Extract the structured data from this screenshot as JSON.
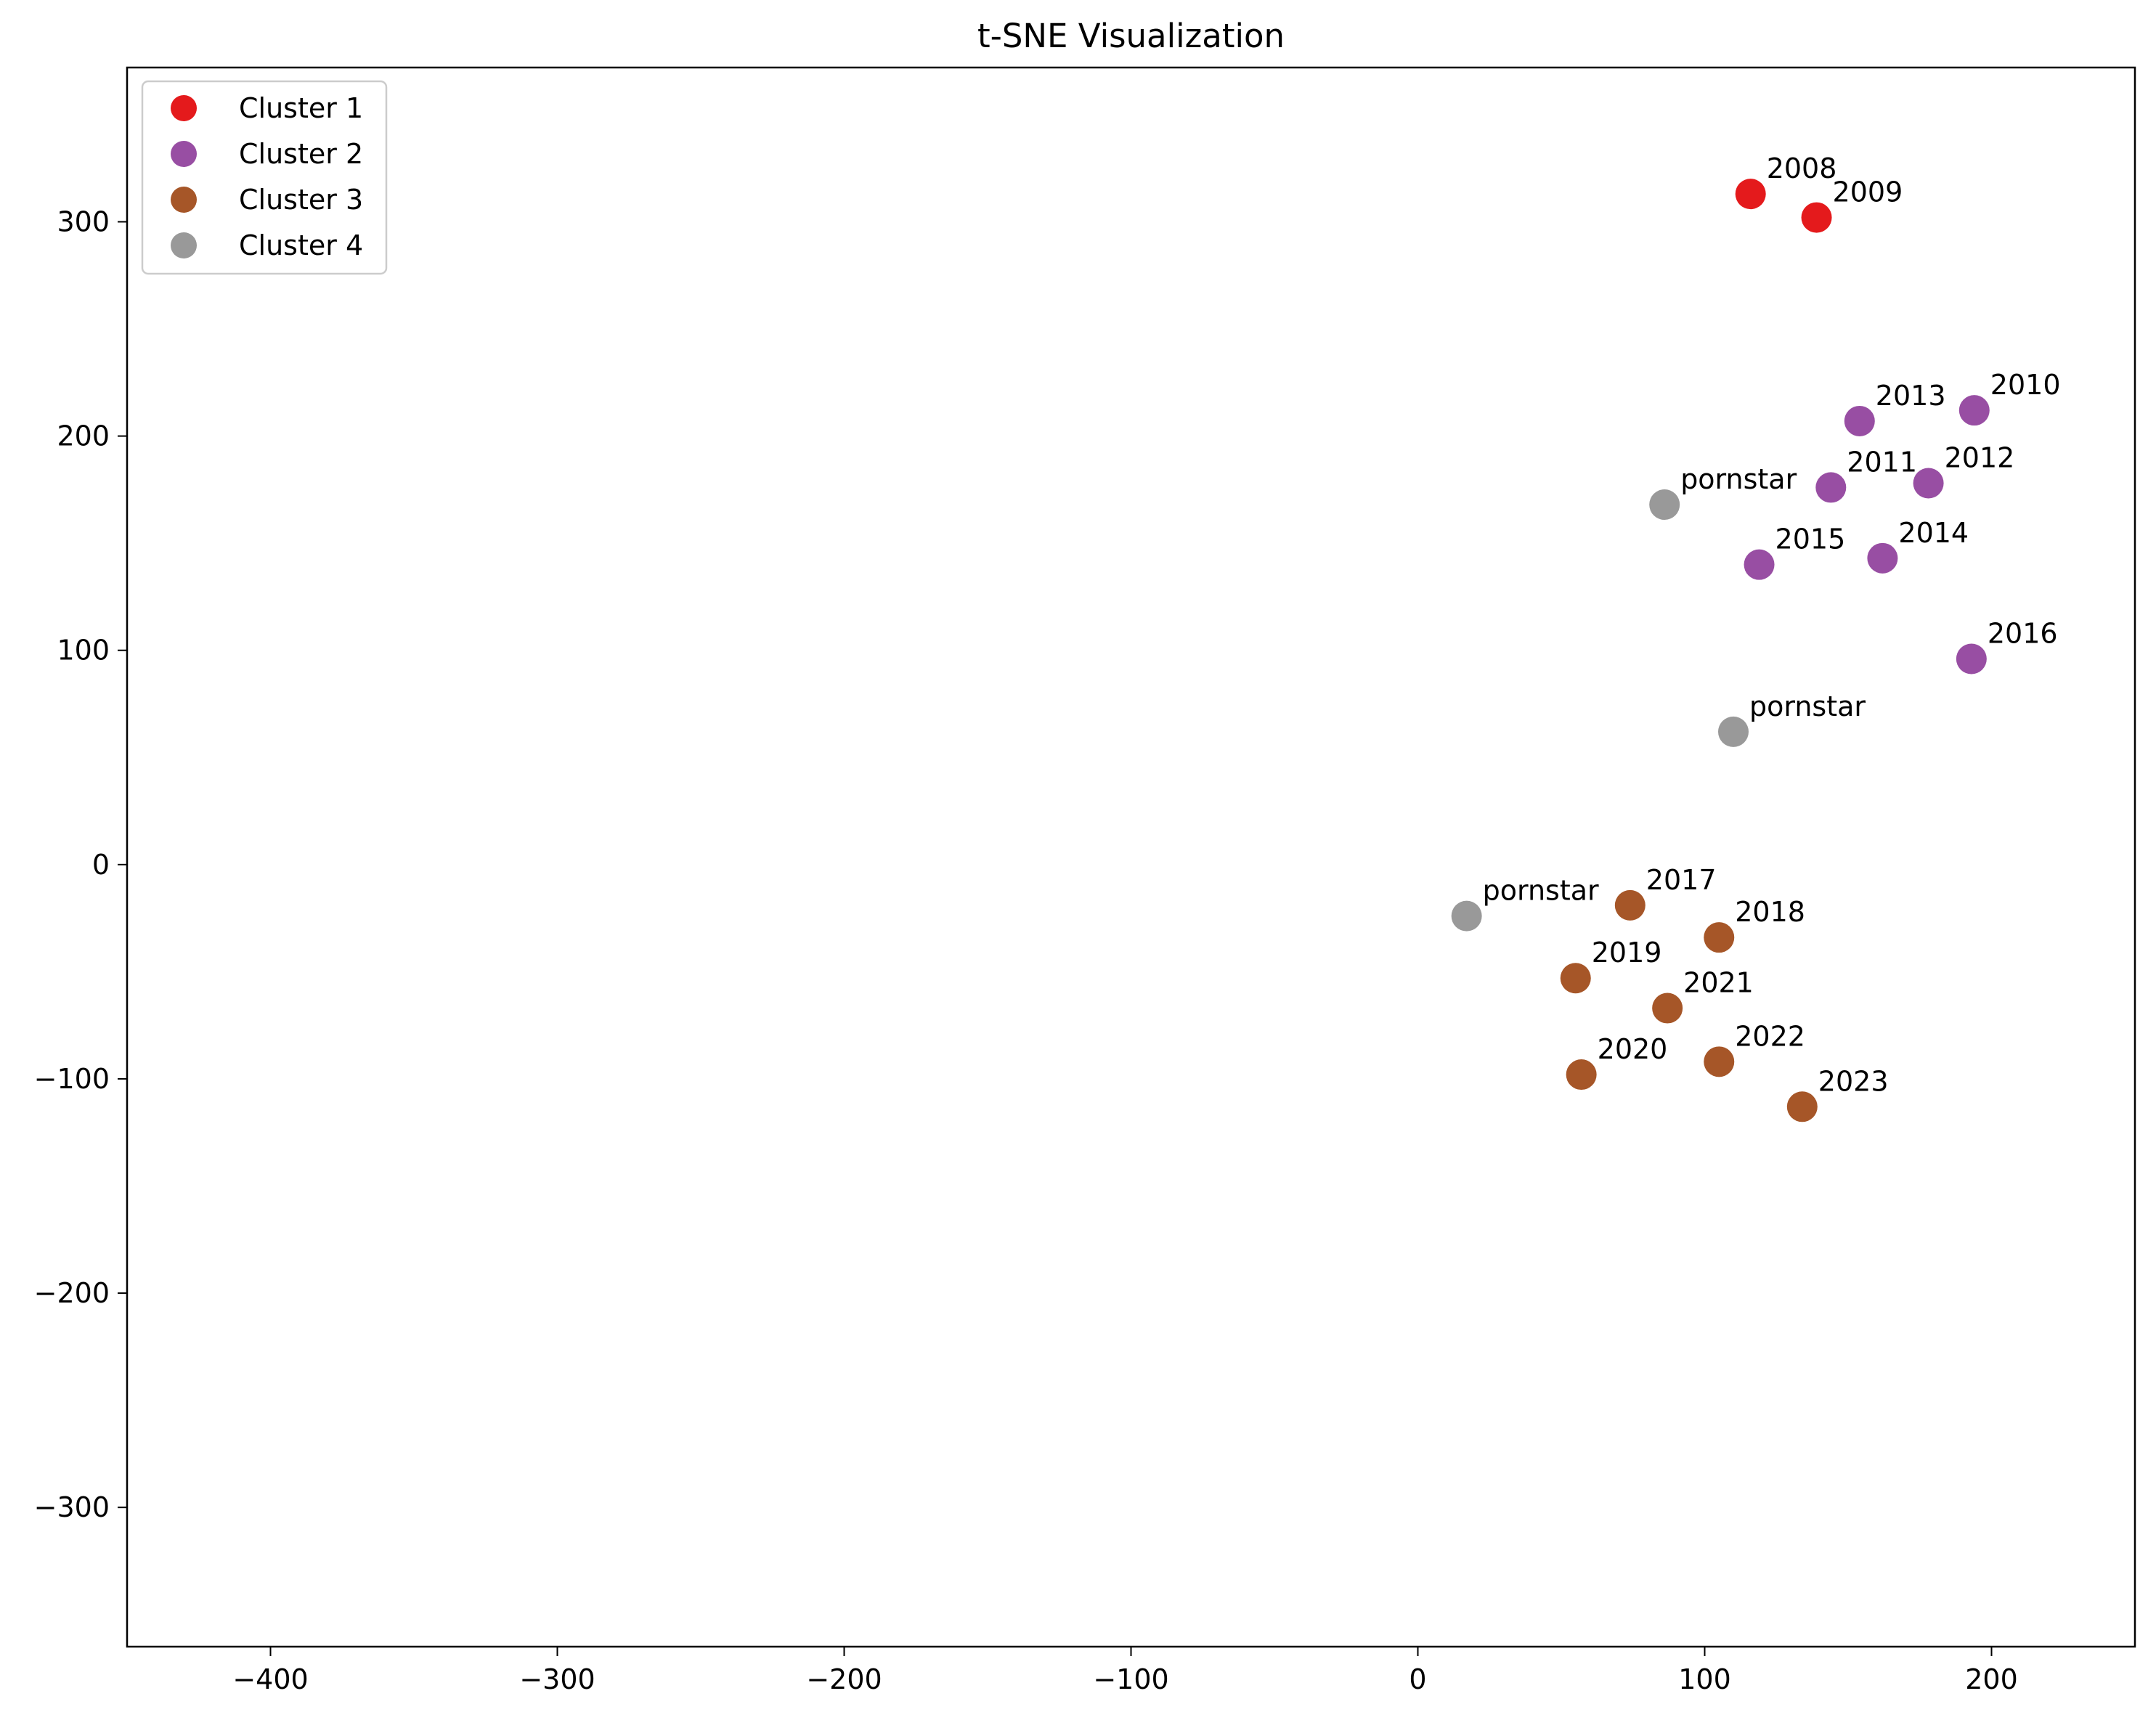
{
  "chart_data": {
    "type": "scatter",
    "title": "t-SNE Visualization",
    "xlabel": "",
    "ylabel": "",
    "xlim": [
      -450,
      250
    ],
    "ylim": [
      -365,
      372
    ],
    "xticks": [
      -400,
      -300,
      -200,
      -100,
      0,
      100,
      200
    ],
    "yticks": [
      -300,
      -200,
      -100,
      0,
      100,
      200,
      300
    ],
    "grid": false,
    "legend_position": "top-left",
    "series": [
      {
        "name": "Cluster 1",
        "color": "#e41a1c",
        "points": [
          {
            "label": "2008",
            "x": 116,
            "y": 313
          },
          {
            "label": "2009",
            "x": 139,
            "y": 302
          }
        ]
      },
      {
        "name": "Cluster 2",
        "color": "#984ea3",
        "points": [
          {
            "label": "2010",
            "x": 194,
            "y": 212
          },
          {
            "label": "2011",
            "x": 144,
            "y": 176
          },
          {
            "label": "2012",
            "x": 178,
            "y": 178
          },
          {
            "label": "2013",
            "x": 154,
            "y": 207
          },
          {
            "label": "2014",
            "x": 162,
            "y": 143
          },
          {
            "label": "2015",
            "x": 119,
            "y": 140
          },
          {
            "label": "2016",
            "x": 193,
            "y": 96
          }
        ]
      },
      {
        "name": "Cluster 3",
        "color": "#a65628",
        "points": [
          {
            "label": "2017",
            "x": 74,
            "y": -19
          },
          {
            "label": "2018",
            "x": 105,
            "y": -34
          },
          {
            "label": "2019",
            "x": 55,
            "y": -53
          },
          {
            "label": "2020",
            "x": 57,
            "y": -98
          },
          {
            "label": "2021",
            "x": 87,
            "y": -67
          },
          {
            "label": "2022",
            "x": 105,
            "y": -92
          },
          {
            "label": "2023",
            "x": 134,
            "y": -113
          }
        ]
      },
      {
        "name": "Cluster 4",
        "color": "#999999",
        "points": [
          {
            "label": "pornstar",
            "x": 86,
            "y": 168
          },
          {
            "label": "pornstar",
            "x": 110,
            "y": 62
          },
          {
            "label": "pornstar",
            "x": 17,
            "y": -24
          }
        ]
      }
    ]
  }
}
